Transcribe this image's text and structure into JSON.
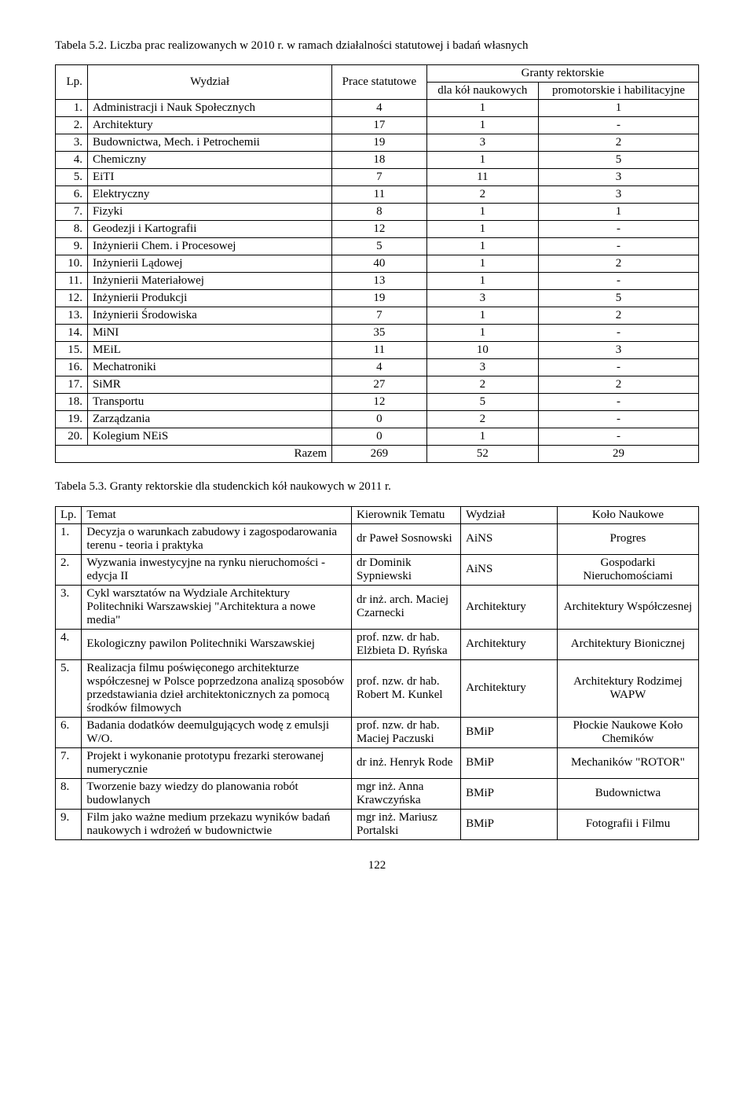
{
  "caption1": "Tabela 5.2. Liczba prac realizowanych w 2010 r. w ramach działalności statutowej i badań własnych",
  "t1": {
    "h_lp": "Lp.",
    "h_wydzial": "Wydział",
    "h_prace": "Prace statutowe",
    "h_granty": "Granty rektorskie",
    "h_kola": "dla kół naukowych",
    "h_promo": "promotorskie i habilitacyjne",
    "rows": [
      {
        "lp": "1.",
        "name": "Administracji i Nauk Społecznych",
        "a": "4",
        "b": "1",
        "c": "1"
      },
      {
        "lp": "2.",
        "name": "Architektury",
        "a": "17",
        "b": "1",
        "c": "-"
      },
      {
        "lp": "3.",
        "name": "Budownictwa, Mech. i Petrochemii",
        "a": "19",
        "b": "3",
        "c": "2"
      },
      {
        "lp": "4.",
        "name": "Chemiczny",
        "a": "18",
        "b": "1",
        "c": "5"
      },
      {
        "lp": "5.",
        "name": "EiTI",
        "a": "7",
        "b": "11",
        "c": "3"
      },
      {
        "lp": "6.",
        "name": "Elektryczny",
        "a": "11",
        "b": "2",
        "c": "3"
      },
      {
        "lp": "7.",
        "name": "Fizyki",
        "a": "8",
        "b": "1",
        "c": "1"
      },
      {
        "lp": "8.",
        "name": "Geodezji i Kartografii",
        "a": "12",
        "b": "1",
        "c": "-"
      },
      {
        "lp": "9.",
        "name": "Inżynierii Chem. i Procesowej",
        "a": "5",
        "b": "1",
        "c": "-"
      },
      {
        "lp": "10.",
        "name": "Inżynierii Lądowej",
        "a": "40",
        "b": "1",
        "c": "2"
      },
      {
        "lp": "11.",
        "name": "Inżynierii Materiałowej",
        "a": "13",
        "b": "1",
        "c": "-"
      },
      {
        "lp": "12.",
        "name": "Inżynierii Produkcji",
        "a": "19",
        "b": "3",
        "c": "5"
      },
      {
        "lp": "13.",
        "name": "Inżynierii Środowiska",
        "a": "7",
        "b": "1",
        "c": "2"
      },
      {
        "lp": "14.",
        "name": "MiNI",
        "a": "35",
        "b": "1",
        "c": "-"
      },
      {
        "lp": "15.",
        "name": "MEiL",
        "a": "11",
        "b": "10",
        "c": "3"
      },
      {
        "lp": "16.",
        "name": "Mechatroniki",
        "a": "4",
        "b": "3",
        "c": "-"
      },
      {
        "lp": "17.",
        "name": "SiMR",
        "a": "27",
        "b": "2",
        "c": "2"
      },
      {
        "lp": "18.",
        "name": "Transportu",
        "a": "12",
        "b": "5",
        "c": "-"
      },
      {
        "lp": "19.",
        "name": "Zarządzania",
        "a": "0",
        "b": "2",
        "c": "-"
      },
      {
        "lp": "20.",
        "name": "Kolegium NEiS",
        "a": "0",
        "b": "1",
        "c": "-"
      }
    ],
    "razem_label": "Razem",
    "razem": {
      "a": "269",
      "b": "52",
      "c": "29"
    }
  },
  "caption2": "Tabela 5.3. Granty rektorskie dla studenckich kół naukowych w 2011 r.",
  "t2": {
    "h_lp": "Lp.",
    "h_topic": "Temat",
    "h_lead": "Kierownik Tematu",
    "h_dept": "Wydział",
    "h_club": "Koło Naukowe",
    "rows": [
      {
        "lp": "1.",
        "topic": "Decyzja o warunkach zabudowy i zagospodarowania terenu - teoria i praktyka",
        "lead": "dr Paweł Sosnowski",
        "dept": "AiNS",
        "club": "Progres"
      },
      {
        "lp": "2.",
        "topic": "Wyzwania inwestycyjne na rynku nieruchomości - edycja II",
        "lead": "dr Dominik Sypniewski",
        "dept": "AiNS",
        "club": "Gospodarki Nieruchomościami"
      },
      {
        "lp": "3.",
        "topic": "Cykl warsztatów na Wydziale Architektury Politechniki Warszawskiej \"Architektura a nowe media\"",
        "lead": "dr inż. arch. Maciej Czarnecki",
        "dept": "Architektury",
        "club": "Architektury Współczesnej"
      },
      {
        "lp": "4.",
        "topic": "Ekologiczny pawilon Politechniki Warszawskiej",
        "lead": "prof. nzw. dr hab. Elżbieta D. Ryńska",
        "dept": "Architektury",
        "club": "Architektury Bionicznej"
      },
      {
        "lp": "5.",
        "topic": "Realizacja filmu poświęconego architekturze współczesnej w Polsce poprzedzona analizą sposobów przedstawiania dzieł architektonicznych za pomocą środków filmowych",
        "lead": "prof. nzw. dr hab. Robert M. Kunkel",
        "dept": "Architektury",
        "club": "Architektury Rodzimej WAPW"
      },
      {
        "lp": "6.",
        "topic": "Badania dodatków deemulgujących wodę z emulsji W/O.",
        "lead": "prof. nzw. dr hab. Maciej Paczuski",
        "dept": "BMiP",
        "club": "Płockie Naukowe Koło Chemików"
      },
      {
        "lp": "7.",
        "topic": "Projekt i wykonanie prototypu frezarki sterowanej numerycznie",
        "lead": "dr inż. Henryk Rode",
        "dept": "BMiP",
        "club": "Mechaników \"ROTOR\""
      },
      {
        "lp": "8.",
        "topic": "Tworzenie bazy wiedzy do planowania robót budowlanych",
        "lead": "mgr inż. Anna Krawczyńska",
        "dept": "BMiP",
        "club": "Budownictwa"
      },
      {
        "lp": "9.",
        "topic": "Film jako ważne medium przekazu wyników badań naukowych i wdrożeń w budownictwie",
        "lead": "mgr inż. Mariusz Portalski",
        "dept": "BMiP",
        "club": "Fotografii i Filmu"
      }
    ]
  },
  "page_number": "122"
}
